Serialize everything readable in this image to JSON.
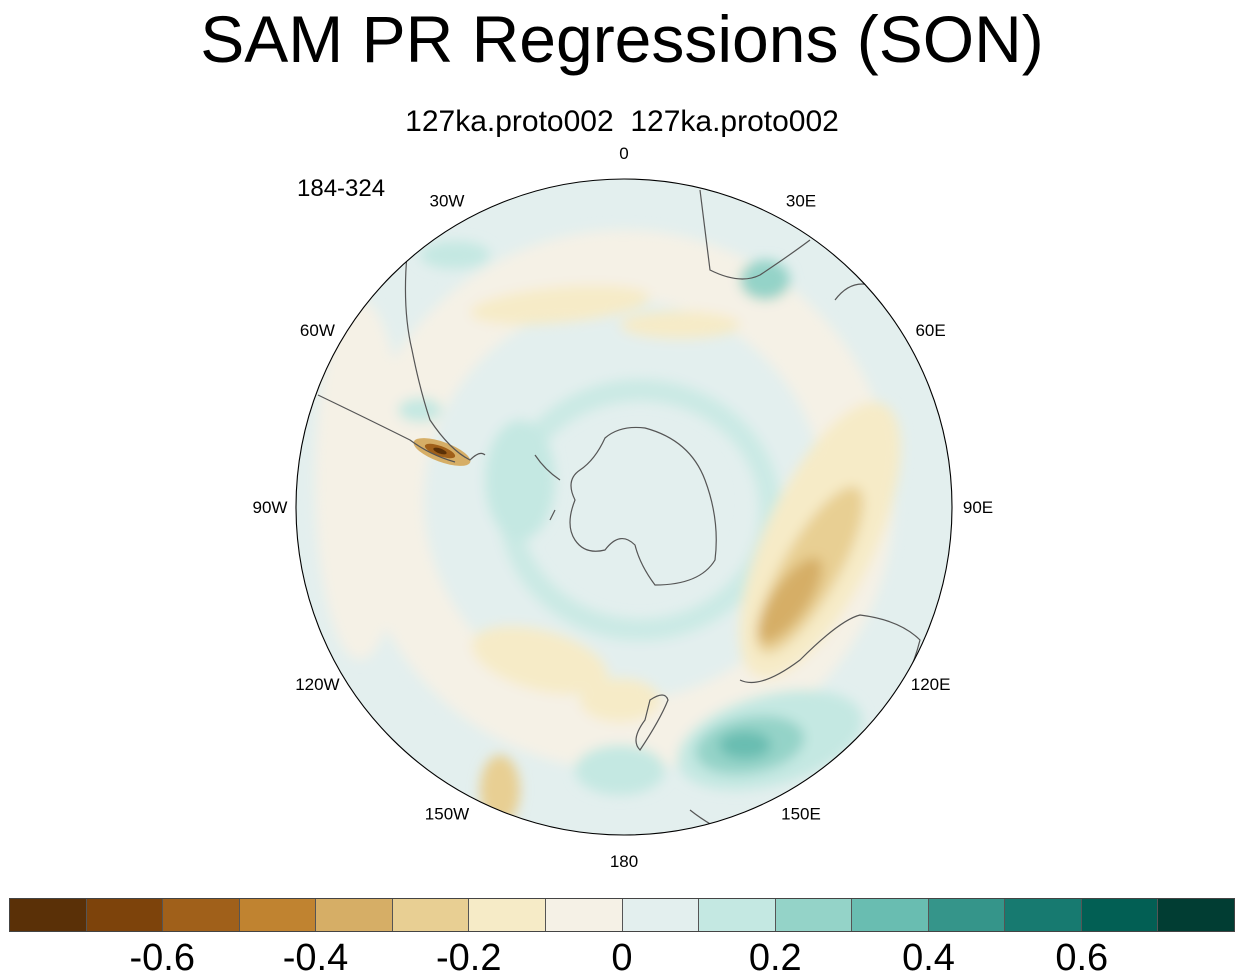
{
  "title": "SAM PR Regressions (SON)",
  "subtitle": "127ka.proto002  127ka.proto002",
  "period": "184-324",
  "longitude_labels": [
    {
      "text": "0",
      "lon": 0
    },
    {
      "text": "30E",
      "lon": 30
    },
    {
      "text": "60E",
      "lon": 60
    },
    {
      "text": "90E",
      "lon": 90
    },
    {
      "text": "120E",
      "lon": 120
    },
    {
      "text": "150E",
      "lon": 150
    },
    {
      "text": "180",
      "lon": 180
    },
    {
      "text": "150W",
      "lon": -150
    },
    {
      "text": "120W",
      "lon": -120
    },
    {
      "text": "90W",
      "lon": -90
    },
    {
      "text": "60W",
      "lon": -60
    },
    {
      "text": "30W",
      "lon": -30
    }
  ],
  "colorbar": {
    "colors": [
      "#5a3007",
      "#7d430b",
      "#a0601a",
      "#c08330",
      "#d6ae66",
      "#e8cf93",
      "#f6ebc7",
      "#f5f1e6",
      "#e3efee",
      "#c4e8e2",
      "#94d3c8",
      "#69bdb1",
      "#35958a",
      "#177a70",
      "#025f54",
      "#013d33"
    ],
    "labels": [
      "-0.6",
      "-0.4",
      "-0.2",
      "0",
      "0.2",
      "0.4",
      "0.6"
    ],
    "label_boundaries": [
      2,
      4,
      6,
      8,
      10,
      12,
      14
    ]
  }
}
